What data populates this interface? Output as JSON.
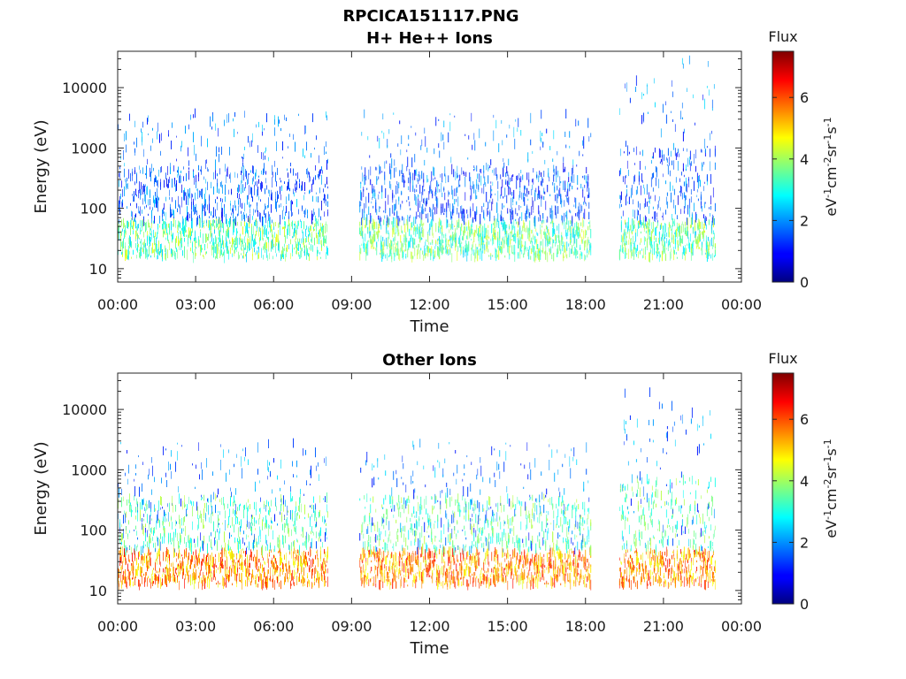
{
  "figure": {
    "title": "RPCICA151117.PNG"
  },
  "chart_data": [
    {
      "type": "heatmap",
      "title": "H+ He++ Ions",
      "xlabel": "Time",
      "ylabel": "Energy (eV)",
      "xticks": [
        "00:00",
        "03:00",
        "06:00",
        "09:00",
        "12:00",
        "15:00",
        "18:00",
        "21:00",
        "00:00"
      ],
      "xlim_hours": [
        0,
        24
      ],
      "yscale": "log",
      "yticks": [
        "10",
        "100",
        "1000",
        "10000"
      ],
      "ylim": [
        6,
        40000
      ],
      "colorbar": {
        "title": "Flux",
        "label": "eV-1cm-2sr-1s-1",
        "ticks": [
          "0",
          "2",
          "4",
          "6"
        ],
        "range": [
          0,
          7.5
        ],
        "colormap": "jet"
      },
      "data_intervals_hours": [
        [
          0.0,
          8.1
        ],
        [
          9.3,
          18.2
        ],
        [
          19.3,
          23.0
        ]
      ],
      "dominant_energy_eV": [
        15,
        60
      ],
      "typical_flux": 3.5,
      "high_energy_extension_eV": [
        20,
        30000
      ],
      "high_energy_interval_hours": [
        19.3,
        23.0
      ],
      "grid": false
    },
    {
      "type": "heatmap",
      "title": "Other Ions",
      "xlabel": "Time",
      "ylabel": "Energy (eV)",
      "xticks": [
        "00:00",
        "03:00",
        "06:00",
        "09:00",
        "12:00",
        "15:00",
        "18:00",
        "21:00",
        "00:00"
      ],
      "xlim_hours": [
        0,
        24
      ],
      "yscale": "log",
      "yticks": [
        "10",
        "100",
        "1000",
        "10000"
      ],
      "ylim": [
        6,
        40000
      ],
      "colorbar": {
        "title": "Flux",
        "label": "eV-1cm-2sr-1s-1",
        "ticks": [
          "0",
          "2",
          "4",
          "6"
        ],
        "range": [
          0,
          7.5
        ],
        "colormap": "jet"
      },
      "data_intervals_hours": [
        [
          0.0,
          8.1
        ],
        [
          9.3,
          18.2
        ],
        [
          19.3,
          23.0
        ]
      ],
      "dominant_energy_eV": [
        12,
        45
      ],
      "typical_flux": 5.5,
      "high_energy_extension_eV": [
        15,
        20000
      ],
      "high_energy_interval_hours": [
        19.3,
        23.0
      ],
      "grid": false
    }
  ]
}
